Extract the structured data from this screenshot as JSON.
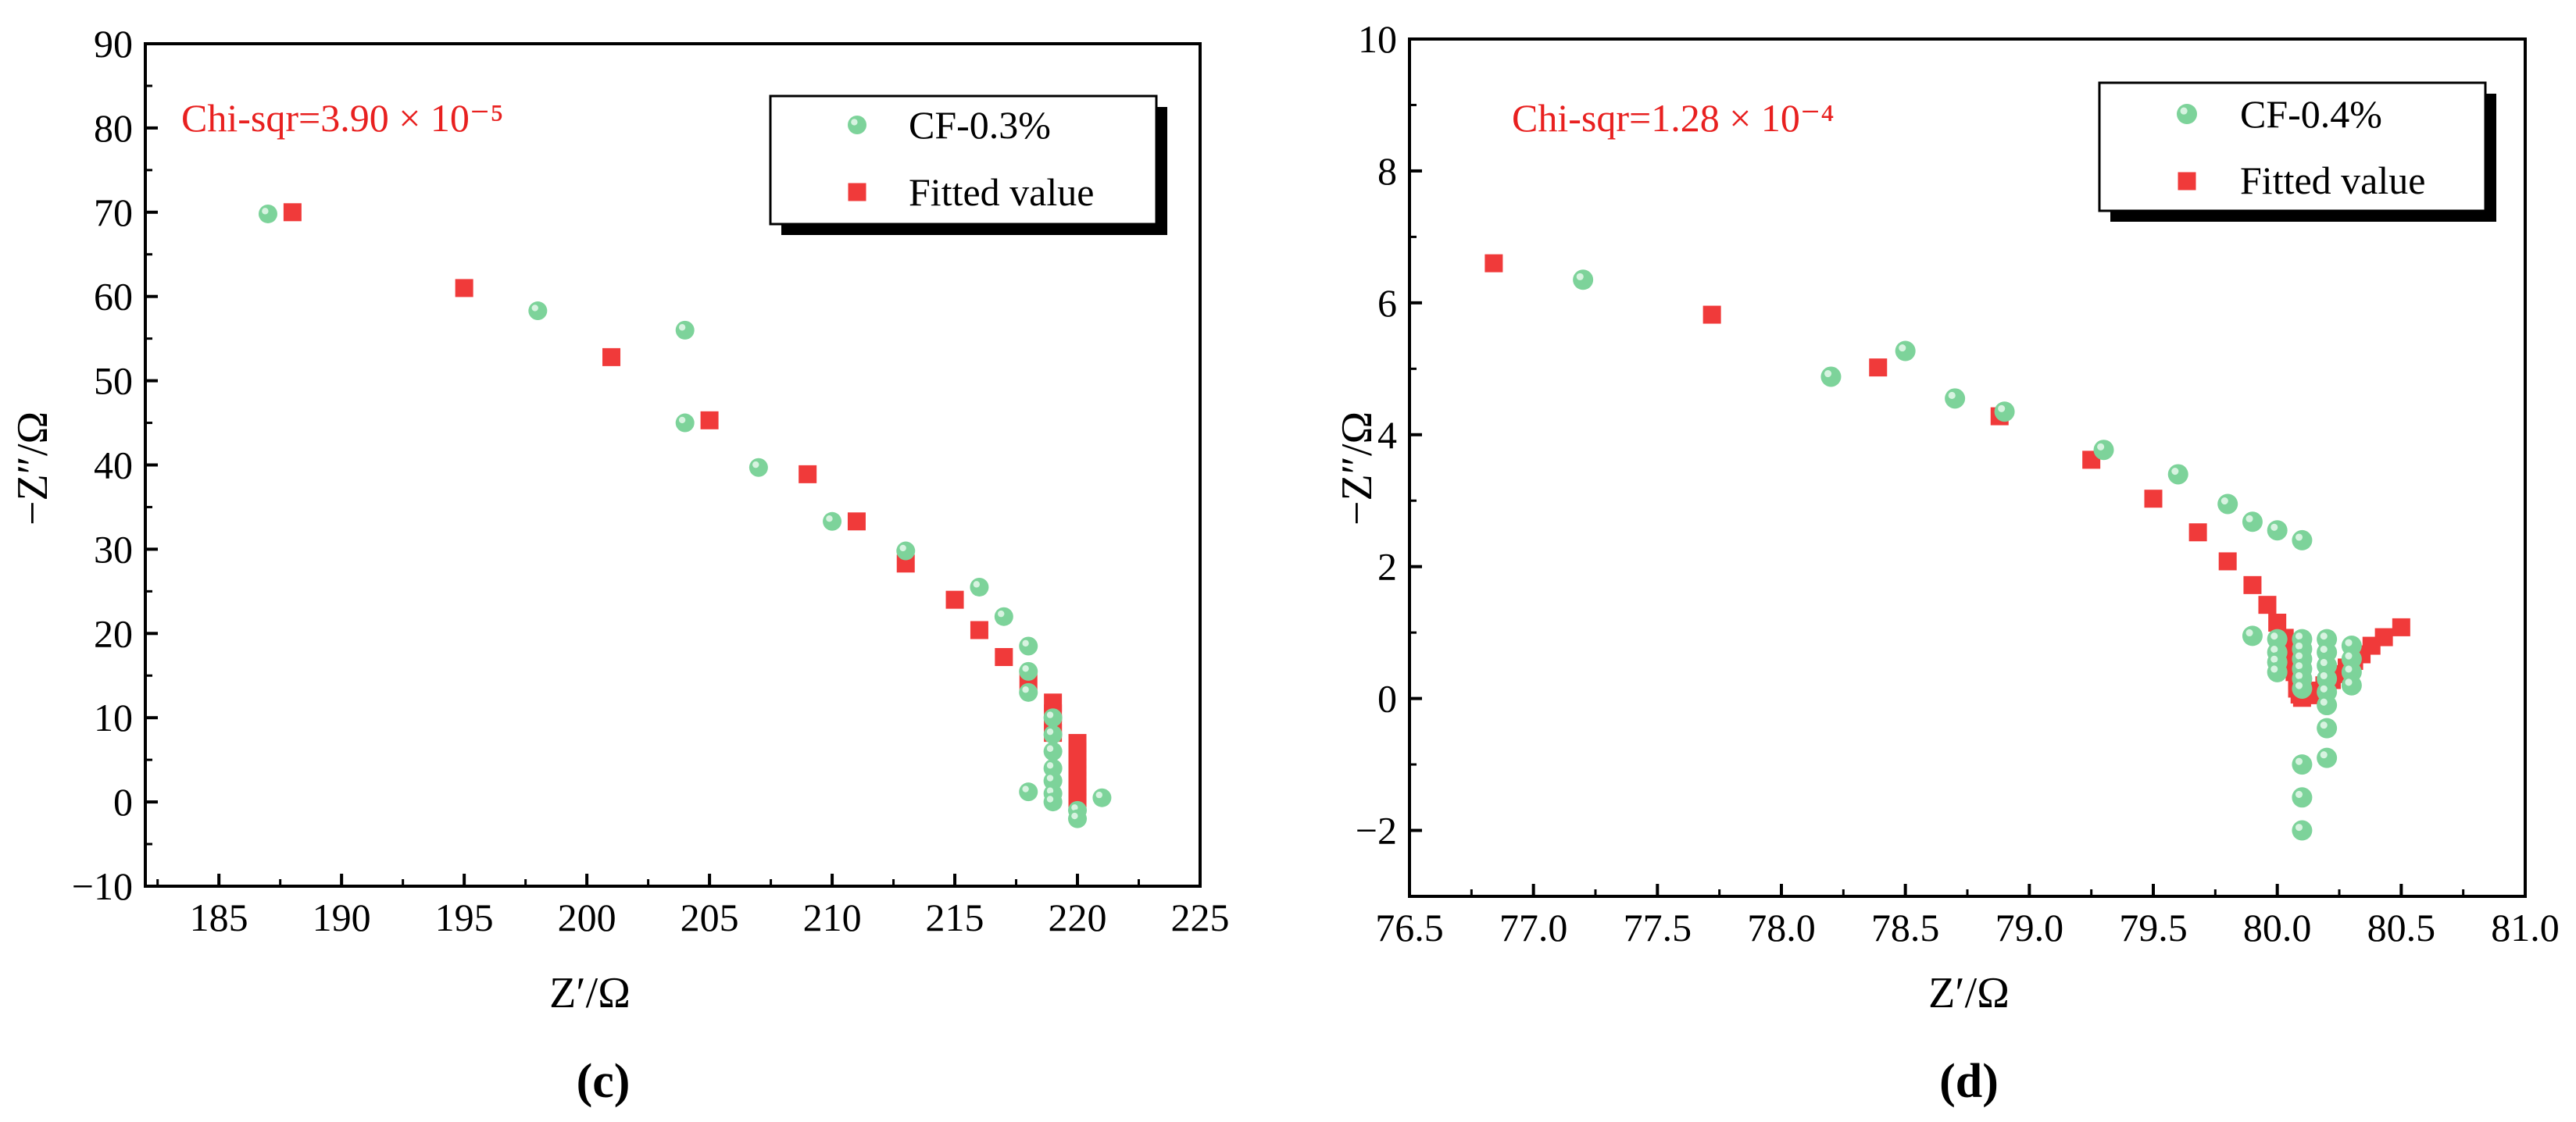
{
  "colors": {
    "measured": "#7dd39a",
    "fitted": "#f03a3a",
    "annotation": "#e8201f",
    "axis": "#000000"
  },
  "chart_data": [
    {
      "panel_label": "(c)",
      "type": "scatter",
      "annotation": "Chi-sqr=3.90 × 10⁻⁵",
      "xlabel": "Z′/Ω",
      "ylabel": "−Z″/Ω",
      "xlim": [
        182,
        225
      ],
      "ylim": [
        -10,
        90
      ],
      "xticks": [
        185,
        190,
        195,
        200,
        205,
        210,
        215,
        220,
        225
      ],
      "yticks": [
        -10,
        0,
        10,
        20,
        30,
        40,
        50,
        60,
        70,
        80,
        90
      ],
      "legend_position": "top-right",
      "series": [
        {
          "name": "CF-0.3%",
          "marker": "circle",
          "points": [
            [
              187,
              69.8
            ],
            [
              198,
              58.3
            ],
            [
              204,
              56
            ],
            [
              204,
              45
            ],
            [
              207,
              39.7
            ],
            [
              210,
              33.3
            ],
            [
              213,
              29.8
            ],
            [
              216,
              25.5
            ],
            [
              217,
              22
            ],
            [
              218,
              18.5
            ],
            [
              218,
              15.5
            ],
            [
              218,
              13
            ],
            [
              219,
              10
            ],
            [
              219,
              8
            ],
            [
              219,
              6
            ],
            [
              219,
              4
            ],
            [
              219,
              2.5
            ],
            [
              219,
              1
            ],
            [
              219,
              0
            ],
            [
              218,
              1.2
            ],
            [
              220,
              -1
            ],
            [
              220,
              -2
            ],
            [
              221,
              0.5
            ]
          ]
        },
        {
          "name": "Fitted value",
          "marker": "square",
          "points": [
            [
              188,
              70
            ],
            [
              195,
              61
            ],
            [
              201,
              52.8
            ],
            [
              205,
              45.3
            ],
            [
              209,
              38.9
            ],
            [
              211,
              33.3
            ],
            [
              213,
              28.3
            ],
            [
              215,
              24
            ],
            [
              216,
              20.4
            ],
            [
              217,
              17.2
            ],
            [
              218,
              14.3
            ],
            [
              219,
              11.8
            ],
            [
              219,
              10.5
            ],
            [
              219,
              9.3
            ],
            [
              219,
              8.2
            ],
            [
              220,
              7
            ],
            [
              220,
              6
            ],
            [
              220,
              5
            ],
            [
              220,
              4.1
            ],
            [
              220,
              3.3
            ],
            [
              220,
              2.5
            ],
            [
              220,
              1.8
            ],
            [
              220,
              1.1
            ],
            [
              220,
              0.5
            ],
            [
              220,
              0
            ]
          ]
        }
      ]
    },
    {
      "panel_label": "(d)",
      "type": "scatter",
      "annotation": "Chi-sqr=1.28 × 10⁻⁴",
      "xlabel": "Z′/Ω",
      "ylabel": "−Z″/Ω",
      "xlim": [
        76.5,
        81.0
      ],
      "ylim": [
        -3,
        10
      ],
      "xticks": [
        76.5,
        77.0,
        77.5,
        78.0,
        78.5,
        79.0,
        79.5,
        80.0,
        80.5,
        81.0
      ],
      "yticks": [
        -2,
        0,
        2,
        4,
        6,
        8,
        10
      ],
      "legend_position": "top-right",
      "series": [
        {
          "name": "CF-0.4%",
          "marker": "circle",
          "points": [
            [
              77.2,
              6.35
            ],
            [
              78.2,
              4.88
            ],
            [
              78.5,
              5.27
            ],
            [
              78.7,
              4.55
            ],
            [
              78.9,
              4.35
            ],
            [
              79.3,
              3.77
            ],
            [
              79.6,
              3.4
            ],
            [
              79.8,
              2.95
            ],
            [
              79.9,
              2.68
            ],
            [
              80.0,
              2.55
            ],
            [
              80.1,
              2.4
            ],
            [
              79.9,
              0.95
            ],
            [
              80.0,
              0.9
            ],
            [
              80.0,
              0.7
            ],
            [
              80.0,
              0.55
            ],
            [
              80.0,
              0.4
            ],
            [
              80.1,
              0.9
            ],
            [
              80.1,
              0.75
            ],
            [
              80.1,
              0.6
            ],
            [
              80.1,
              0.45
            ],
            [
              80.1,
              0.3
            ],
            [
              80.1,
              0.15
            ],
            [
              80.2,
              0.9
            ],
            [
              80.2,
              0.7
            ],
            [
              80.2,
              0.5
            ],
            [
              80.2,
              0.3
            ],
            [
              80.2,
              0.1
            ],
            [
              80.3,
              0.8
            ],
            [
              80.3,
              0.6
            ],
            [
              80.3,
              0.4
            ],
            [
              80.3,
              0.2
            ],
            [
              80.2,
              -0.1
            ],
            [
              80.2,
              -0.45
            ],
            [
              80.2,
              -0.9
            ],
            [
              80.1,
              -1.0
            ],
            [
              80.1,
              -1.5
            ],
            [
              80.1,
              -2.0
            ]
          ]
        },
        {
          "name": "Fitted value",
          "marker": "square",
          "points": [
            [
              76.84,
              6.6
            ],
            [
              77.72,
              5.82
            ],
            [
              78.39,
              5.02
            ],
            [
              78.88,
              4.28
            ],
            [
              79.25,
              3.62
            ],
            [
              79.5,
              3.03
            ],
            [
              79.68,
              2.52
            ],
            [
              79.8,
              2.08
            ],
            [
              79.9,
              1.72
            ],
            [
              79.96,
              1.42
            ],
            [
              80.0,
              1.15
            ],
            [
              80.03,
              0.92
            ],
            [
              80.05,
              0.72
            ],
            [
              80.06,
              0.55
            ],
            [
              80.07,
              0.4
            ],
            [
              80.08,
              0.27
            ],
            [
              80.08,
              0.15
            ],
            [
              80.09,
              0.06
            ],
            [
              80.1,
              0.01
            ],
            [
              80.13,
              0.05
            ],
            [
              80.16,
              0.12
            ],
            [
              80.19,
              0.2
            ],
            [
              80.22,
              0.28
            ],
            [
              80.25,
              0.37
            ],
            [
              80.28,
              0.47
            ],
            [
              80.31,
              0.57
            ],
            [
              80.34,
              0.67
            ],
            [
              80.38,
              0.8
            ],
            [
              80.43,
              0.93
            ],
            [
              80.5,
              1.08
            ]
          ]
        }
      ]
    }
  ]
}
